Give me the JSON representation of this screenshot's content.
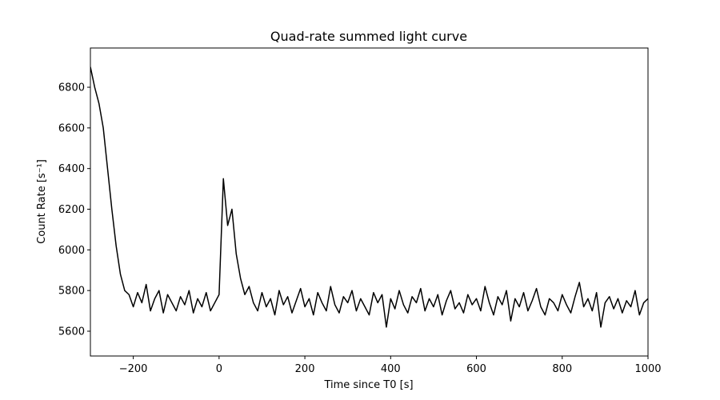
{
  "chart_data": {
    "type": "line",
    "title": "Quad-rate summed light curve",
    "xlabel": "Time since T0 [s]",
    "ylabel": "Count Rate [s⁻¹]",
    "x": [
      -300,
      -290,
      -280,
      -270,
      -260,
      -250,
      -240,
      -230,
      -220,
      -210,
      -200,
      -190,
      -180,
      -170,
      -160,
      -150,
      -140,
      -130,
      -120,
      -110,
      -100,
      -90,
      -80,
      -70,
      -60,
      -50,
      -40,
      -30,
      -20,
      -10,
      0,
      10,
      20,
      30,
      40,
      50,
      60,
      70,
      80,
      90,
      100,
      110,
      120,
      130,
      140,
      150,
      160,
      170,
      180,
      190,
      200,
      210,
      220,
      230,
      240,
      250,
      260,
      270,
      280,
      290,
      300,
      310,
      320,
      330,
      340,
      350,
      360,
      370,
      380,
      390,
      400,
      410,
      420,
      430,
      440,
      450,
      460,
      470,
      480,
      490,
      500,
      510,
      520,
      530,
      540,
      550,
      560,
      570,
      580,
      590,
      600,
      610,
      620,
      630,
      640,
      650,
      660,
      670,
      680,
      690,
      700,
      710,
      720,
      730,
      740,
      750,
      760,
      770,
      780,
      790,
      800,
      810,
      820,
      830,
      840,
      850,
      860,
      870,
      880,
      890,
      900,
      910,
      920,
      930,
      940,
      950,
      960,
      970,
      980,
      990,
      1000
    ],
    "series": [
      {
        "name": "Quad-rate summed",
        "color": "#000000",
        "values": [
          6900,
          6800,
          6720,
          6600,
          6400,
          6200,
          6020,
          5880,
          5800,
          5780,
          5720,
          5790,
          5740,
          5830,
          5700,
          5760,
          5800,
          5690,
          5780,
          5740,
          5700,
          5770,
          5730,
          5800,
          5690,
          5760,
          5720,
          5790,
          5700,
          5740,
          5780,
          6350,
          6120,
          6200,
          5980,
          5860,
          5780,
          5820,
          5740,
          5700,
          5790,
          5720,
          5760,
          5680,
          5800,
          5730,
          5770,
          5690,
          5750,
          5810,
          5720,
          5760,
          5680,
          5790,
          5740,
          5700,
          5820,
          5730,
          5690,
          5770,
          5740,
          5800,
          5700,
          5760,
          5720,
          5680,
          5790,
          5740,
          5780,
          5620,
          5760,
          5710,
          5800,
          5730,
          5690,
          5770,
          5740,
          5810,
          5700,
          5760,
          5720,
          5780,
          5680,
          5750,
          5800,
          5710,
          5740,
          5690,
          5780,
          5730,
          5760,
          5700,
          5820,
          5740,
          5680,
          5770,
          5730,
          5800,
          5650,
          5760,
          5720,
          5790,
          5700,
          5750,
          5810,
          5720,
          5680,
          5760,
          5740,
          5700,
          5780,
          5730,
          5690,
          5770,
          5840,
          5720,
          5760,
          5700,
          5790,
          5620,
          5740,
          5770,
          5710,
          5760,
          5690,
          5750,
          5720,
          5800,
          5680,
          5740,
          5760
        ]
      }
    ],
    "xlim": [
      -300,
      1000
    ],
    "ylim": [
      5478,
      6993
    ],
    "xticks": [
      {
        "value": -200,
        "label": "−200"
      },
      0,
      200,
      400,
      600,
      800,
      1000
    ],
    "yticks": [
      5600,
      5800,
      6000,
      6200,
      6400,
      6600,
      6800
    ],
    "grid": false
  }
}
